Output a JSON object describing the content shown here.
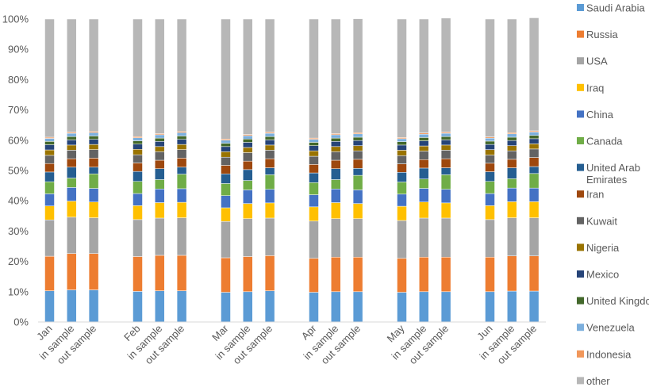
{
  "chart_data": {
    "type": "bar",
    "stacked": "percent",
    "title": "",
    "xlabel": "",
    "ylabel": "",
    "ylim": [
      0,
      1
    ],
    "y_ticks": [
      "0%",
      "10%",
      "20%",
      "30%",
      "40%",
      "50%",
      "60%",
      "70%",
      "80%",
      "90%",
      "100%"
    ],
    "grid": false,
    "legend_position": "right",
    "categories": [
      "Jan",
      "in sample",
      "out sample",
      "Feb",
      "in sample",
      "out sample",
      "Mar",
      "in sample",
      "out sample",
      "Apr",
      "in sample",
      "out sample",
      "May",
      "in sample",
      "out sample",
      "Jun",
      "in sample",
      "out sample"
    ],
    "series": [
      {
        "name": "Saudi Arabia",
        "color": "#5B9BD5",
        "values": [
          0.103,
          0.106,
          0.106,
          0.101,
          0.103,
          0.103,
          0.098,
          0.1,
          0.103,
          0.098,
          0.1,
          0.1,
          0.098,
          0.1,
          0.1,
          0.1,
          0.102,
          0.102
        ]
      },
      {
        "name": "Russia",
        "color": "#ED7D31",
        "values": [
          0.114,
          0.12,
          0.12,
          0.115,
          0.117,
          0.117,
          0.114,
          0.116,
          0.116,
          0.112,
          0.114,
          0.114,
          0.112,
          0.114,
          0.114,
          0.114,
          0.116,
          0.116
        ]
      },
      {
        "name": "USA",
        "color": "#A5A5A5",
        "values": [
          0.12,
          0.12,
          0.118,
          0.122,
          0.123,
          0.124,
          0.12,
          0.125,
          0.124,
          0.123,
          0.127,
          0.127,
          0.125,
          0.129,
          0.129,
          0.124,
          0.126,
          0.126
        ]
      },
      {
        "name": "Iraq",
        "color": "#FFC000",
        "values": [
          0.046,
          0.053,
          0.052,
          0.046,
          0.051,
          0.051,
          0.045,
          0.05,
          0.05,
          0.047,
          0.053,
          0.05,
          0.047,
          0.053,
          0.05,
          0.046,
          0.053,
          0.053
        ]
      },
      {
        "name": "China",
        "color": "#4472C4",
        "values": [
          0.04,
          0.045,
          0.045,
          0.04,
          0.045,
          0.045,
          0.04,
          0.045,
          0.045,
          0.04,
          0.045,
          0.045,
          0.04,
          0.045,
          0.045,
          0.04,
          0.045,
          0.045
        ]
      },
      {
        "name": "Canada",
        "color": "#70AD47",
        "values": [
          0.04,
          0.031,
          0.048,
          0.04,
          0.031,
          0.048,
          0.04,
          0.031,
          0.048,
          0.04,
          0.031,
          0.048,
          0.04,
          0.031,
          0.048,
          0.04,
          0.031,
          0.048
        ]
      },
      {
        "name": "United Arab Emirates",
        "color": "#255E91",
        "values": [
          0.032,
          0.036,
          0.022,
          0.033,
          0.036,
          0.023,
          0.032,
          0.036,
          0.023,
          0.032,
          0.036,
          0.023,
          0.032,
          0.036,
          0.023,
          0.032,
          0.036,
          0.023
        ]
      },
      {
        "name": "Iran",
        "color": "#9E480E",
        "values": [
          0.028,
          0.028,
          0.03,
          0.028,
          0.028,
          0.03,
          0.028,
          0.028,
          0.03,
          0.028,
          0.028,
          0.03,
          0.028,
          0.028,
          0.03,
          0.028,
          0.028,
          0.03
        ]
      },
      {
        "name": "Kuwait",
        "color": "#636363",
        "values": [
          0.027,
          0.028,
          0.028,
          0.027,
          0.028,
          0.028,
          0.027,
          0.028,
          0.028,
          0.027,
          0.028,
          0.028,
          0.027,
          0.028,
          0.028,
          0.027,
          0.028,
          0.028
        ]
      },
      {
        "name": "Nigeria",
        "color": "#997300",
        "values": [
          0.018,
          0.017,
          0.017,
          0.018,
          0.017,
          0.017,
          0.018,
          0.017,
          0.017,
          0.018,
          0.017,
          0.017,
          0.018,
          0.017,
          0.017,
          0.018,
          0.017,
          0.017
        ]
      },
      {
        "name": "Mexico",
        "color": "#264478",
        "values": [
          0.017,
          0.017,
          0.017,
          0.017,
          0.017,
          0.017,
          0.017,
          0.017,
          0.017,
          0.017,
          0.017,
          0.017,
          0.017,
          0.017,
          0.017,
          0.017,
          0.017,
          0.017
        ]
      },
      {
        "name": "United Kingdom",
        "color": "#43682B",
        "values": [
          0.011,
          0.011,
          0.011,
          0.011,
          0.011,
          0.011,
          0.011,
          0.011,
          0.011,
          0.011,
          0.011,
          0.011,
          0.011,
          0.011,
          0.011,
          0.011,
          0.011,
          0.011
        ]
      },
      {
        "name": "Venezuela",
        "color": "#7CAFDD",
        "values": [
          0.01,
          0.011,
          0.011,
          0.01,
          0.011,
          0.011,
          0.01,
          0.011,
          0.011,
          0.01,
          0.011,
          0.011,
          0.01,
          0.011,
          0.011,
          0.01,
          0.011,
          0.011
        ]
      },
      {
        "name": "Indonesia",
        "color": "#F1975A",
        "values": [
          0.004,
          0.004,
          0.004,
          0.004,
          0.004,
          0.004,
          0.004,
          0.004,
          0.004,
          0.004,
          0.004,
          0.004,
          0.004,
          0.004,
          0.004,
          0.004,
          0.004,
          0.004
        ]
      },
      {
        "name": "other",
        "color": "#B7B7B7",
        "values": [
          0.39,
          0.373,
          0.371,
          0.388,
          0.378,
          0.371,
          0.396,
          0.381,
          0.373,
          0.393,
          0.378,
          0.376,
          0.391,
          0.376,
          0.376,
          0.389,
          0.375,
          0.373
        ]
      }
    ]
  }
}
